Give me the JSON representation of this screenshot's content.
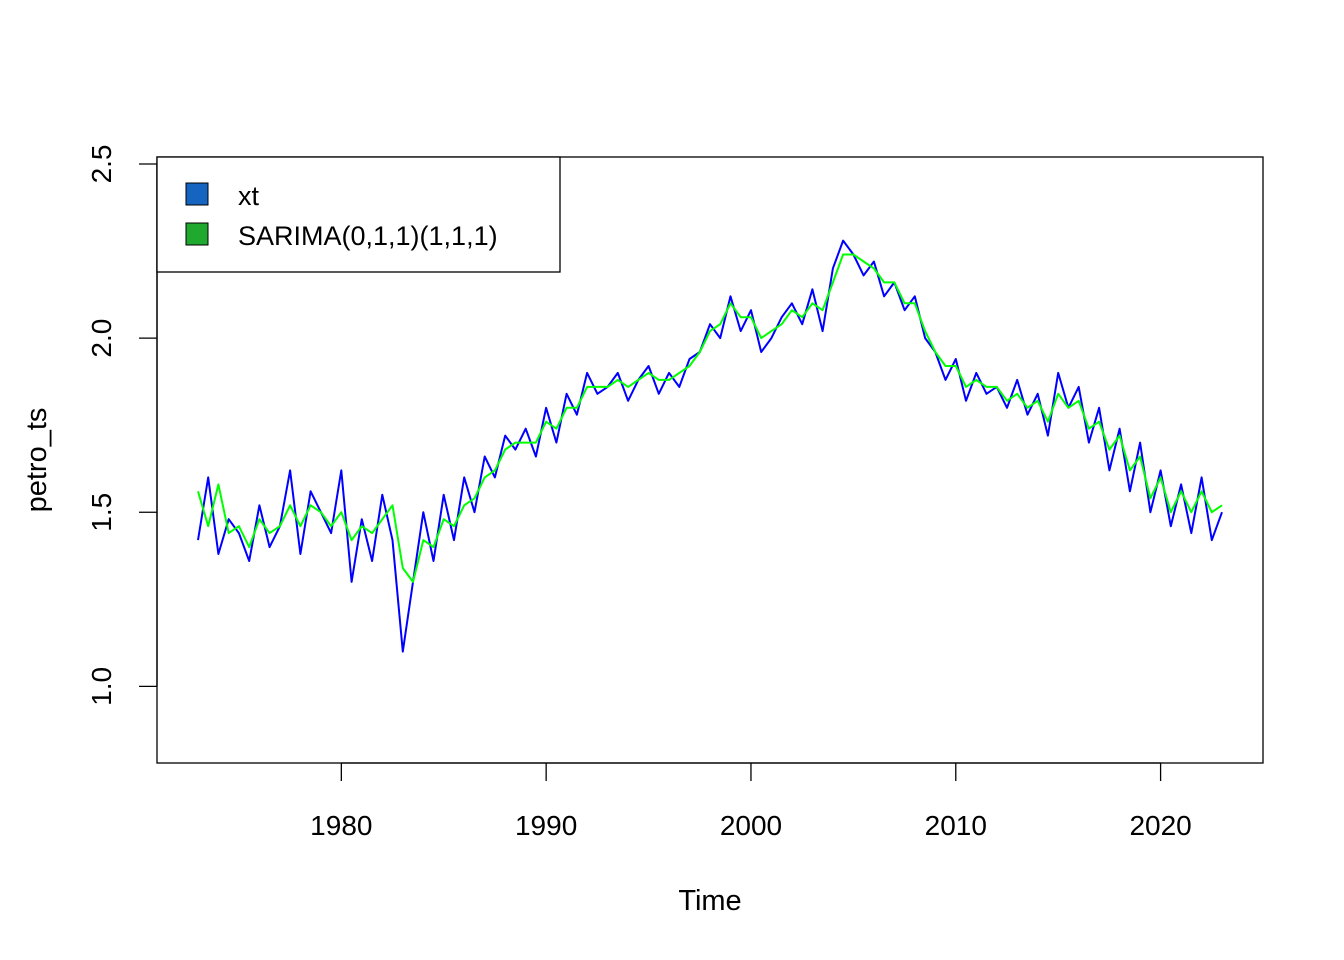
{
  "chart_data": {
    "type": "line",
    "title": "",
    "xlabel": "Time",
    "ylabel": "petro_ts",
    "xlim": [
      1971.0,
      2025.0
    ],
    "ylim": [
      0.78,
      2.52
    ],
    "x_ticks": [
      1980,
      1990,
      2000,
      2010,
      2020
    ],
    "x_tick_labels": [
      "1980",
      "1990",
      "2000",
      "2010",
      "2020"
    ],
    "y_ticks": [
      1.0,
      1.5,
      2.0,
      2.5
    ],
    "y_tick_labels": [
      "1.0",
      "1.5",
      "2.0",
      "2.5"
    ],
    "legend_position": "top-left",
    "legend": [
      {
        "label": "xt",
        "color": "#1565c0"
      },
      {
        "label": "SARIMA(0,1,1)(1,1,1)",
        "color": "#1faa2f"
      }
    ],
    "series": [
      {
        "name": "xt",
        "color": "#0000ff",
        "x": [
          1973.0,
          1973.5,
          1974.0,
          1974.5,
          1975.0,
          1975.5,
          1976.0,
          1976.5,
          1977.0,
          1977.5,
          1978.0,
          1978.5,
          1979.0,
          1979.5,
          1980.0,
          1980.5,
          1981.0,
          1981.5,
          1982.0,
          1982.5,
          1983.0,
          1983.5,
          1984.0,
          1984.5,
          1985.0,
          1985.5,
          1986.0,
          1986.5,
          1987.0,
          1987.5,
          1988.0,
          1988.5,
          1989.0,
          1989.5,
          1990.0,
          1990.5,
          1991.0,
          1991.5,
          1992.0,
          1992.5,
          1993.0,
          1993.5,
          1994.0,
          1994.5,
          1995.0,
          1995.5,
          1996.0,
          1996.5,
          1997.0,
          1997.5,
          1998.0,
          1998.5,
          1999.0,
          1999.5,
          2000.0,
          2000.5,
          2001.0,
          2001.5,
          2002.0,
          2002.5,
          2003.0,
          2003.5,
          2004.0,
          2004.5,
          2005.0,
          2005.5,
          2006.0,
          2006.5,
          2007.0,
          2007.5,
          2008.0,
          2008.5,
          2009.0,
          2009.5,
          2010.0,
          2010.5,
          2011.0,
          2011.5,
          2012.0,
          2012.5,
          2013.0,
          2013.5,
          2014.0,
          2014.5,
          2015.0,
          2015.5,
          2016.0,
          2016.5,
          2017.0,
          2017.5,
          2018.0,
          2018.5,
          2019.0,
          2019.5,
          2020.0,
          2020.5,
          2021.0,
          2021.5,
          2022.0,
          2022.5,
          2023.0
        ],
        "values": [
          1.42,
          1.6,
          1.38,
          1.48,
          1.44,
          1.36,
          1.52,
          1.4,
          1.46,
          1.62,
          1.38,
          1.56,
          1.5,
          1.44,
          1.62,
          1.3,
          1.48,
          1.36,
          1.55,
          1.42,
          1.1,
          1.3,
          1.5,
          1.36,
          1.55,
          1.42,
          1.6,
          1.5,
          1.66,
          1.6,
          1.72,
          1.68,
          1.74,
          1.66,
          1.8,
          1.7,
          1.84,
          1.78,
          1.9,
          1.84,
          1.86,
          1.9,
          1.82,
          1.88,
          1.92,
          1.84,
          1.9,
          1.86,
          1.94,
          1.96,
          2.04,
          2.0,
          2.12,
          2.02,
          2.08,
          1.96,
          2.0,
          2.06,
          2.1,
          2.04,
          2.14,
          2.02,
          2.2,
          2.28,
          2.24,
          2.18,
          2.22,
          2.12,
          2.16,
          2.08,
          2.12,
          2.0,
          1.96,
          1.88,
          1.94,
          1.82,
          1.9,
          1.84,
          1.86,
          1.8,
          1.88,
          1.78,
          1.84,
          1.72,
          1.9,
          1.8,
          1.86,
          1.7,
          1.8,
          1.62,
          1.74,
          1.56,
          1.7,
          1.5,
          1.62,
          1.46,
          1.58,
          1.44,
          1.6,
          1.42,
          1.5
        ]
      },
      {
        "name": "SARIMA(0,1,1)(1,1,1)",
        "color": "#00ff00",
        "x": [
          1973.0,
          1973.5,
          1974.0,
          1974.5,
          1975.0,
          1975.5,
          1976.0,
          1976.5,
          1977.0,
          1977.5,
          1978.0,
          1978.5,
          1979.0,
          1979.5,
          1980.0,
          1980.5,
          1981.0,
          1981.5,
          1982.0,
          1982.5,
          1983.0,
          1983.5,
          1984.0,
          1984.5,
          1985.0,
          1985.5,
          1986.0,
          1986.5,
          1987.0,
          1987.5,
          1988.0,
          1988.5,
          1989.0,
          1989.5,
          1990.0,
          1990.5,
          1991.0,
          1991.5,
          1992.0,
          1992.5,
          1993.0,
          1993.5,
          1994.0,
          1994.5,
          1995.0,
          1995.5,
          1996.0,
          1996.5,
          1997.0,
          1997.5,
          1998.0,
          1998.5,
          1999.0,
          1999.5,
          2000.0,
          2000.5,
          2001.0,
          2001.5,
          2002.0,
          2002.5,
          2003.0,
          2003.5,
          2004.0,
          2004.5,
          2005.0,
          2005.5,
          2006.0,
          2006.5,
          2007.0,
          2007.5,
          2008.0,
          2008.5,
          2009.0,
          2009.5,
          2010.0,
          2010.5,
          2011.0,
          2011.5,
          2012.0,
          2012.5,
          2013.0,
          2013.5,
          2014.0,
          2014.5,
          2015.0,
          2015.5,
          2016.0,
          2016.5,
          2017.0,
          2017.5,
          2018.0,
          2018.5,
          2019.0,
          2019.5,
          2020.0,
          2020.5,
          2021.0,
          2021.5,
          2022.0,
          2022.5,
          2023.0
        ],
        "values": [
          1.56,
          1.46,
          1.58,
          1.44,
          1.46,
          1.4,
          1.48,
          1.44,
          1.46,
          1.52,
          1.46,
          1.52,
          1.5,
          1.46,
          1.5,
          1.42,
          1.46,
          1.44,
          1.48,
          1.52,
          1.34,
          1.3,
          1.42,
          1.4,
          1.48,
          1.46,
          1.52,
          1.54,
          1.6,
          1.62,
          1.68,
          1.7,
          1.7,
          1.7,
          1.76,
          1.74,
          1.8,
          1.8,
          1.86,
          1.86,
          1.86,
          1.88,
          1.86,
          1.88,
          1.9,
          1.88,
          1.88,
          1.9,
          1.92,
          1.96,
          2.02,
          2.04,
          2.1,
          2.06,
          2.06,
          2.0,
          2.02,
          2.04,
          2.08,
          2.06,
          2.1,
          2.08,
          2.16,
          2.24,
          2.24,
          2.22,
          2.2,
          2.16,
          2.16,
          2.1,
          2.1,
          2.02,
          1.96,
          1.92,
          1.92,
          1.86,
          1.88,
          1.86,
          1.86,
          1.82,
          1.84,
          1.8,
          1.82,
          1.76,
          1.84,
          1.8,
          1.82,
          1.74,
          1.76,
          1.68,
          1.72,
          1.62,
          1.66,
          1.54,
          1.6,
          1.5,
          1.56,
          1.5,
          1.56,
          1.5,
          1.52
        ]
      }
    ]
  }
}
